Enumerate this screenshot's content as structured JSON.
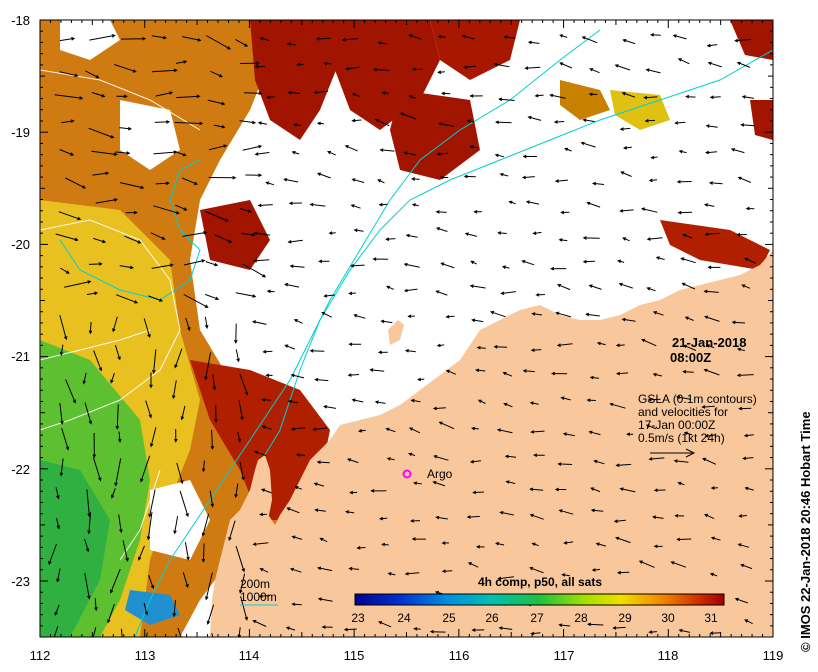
{
  "map": {
    "date": "21-Jan-2018",
    "time": "08:00Z",
    "lon_labels": [
      "112",
      "113",
      "114",
      "115",
      "116",
      "117",
      "118",
      "119"
    ],
    "lat_labels": [
      "-18",
      "-19",
      "-20",
      "-21",
      "-22",
      "-23"
    ],
    "info": {
      "line1": "GSLA (0.1m contours)",
      "line2": "and velocities for",
      "line3": "17-Jan 00:00Z",
      "line4": "0.5m/s (1kt 24h)"
    },
    "argo_label": "Argo",
    "legend": {
      "isobath_200": "200m",
      "isobath_1000": "1000m"
    },
    "colorbar": {
      "title": "4h comp, p50, all sats",
      "labels": [
        "23",
        "24",
        "25",
        "26",
        "27",
        "28",
        "29",
        "30",
        "31"
      ]
    },
    "credit": "IMOS 22-Jan-2018 20:46 Hobart Time",
    "copyright_symbol": "©"
  },
  "colors": {
    "land": "#f9c79c",
    "isobath": "#00d0d0",
    "argo": "#ff00ff",
    "sst_hot": "#a01400",
    "sst_warm": "#d07010",
    "sst_mid": "#e8c020",
    "sst_cool": "#40c030"
  }
}
